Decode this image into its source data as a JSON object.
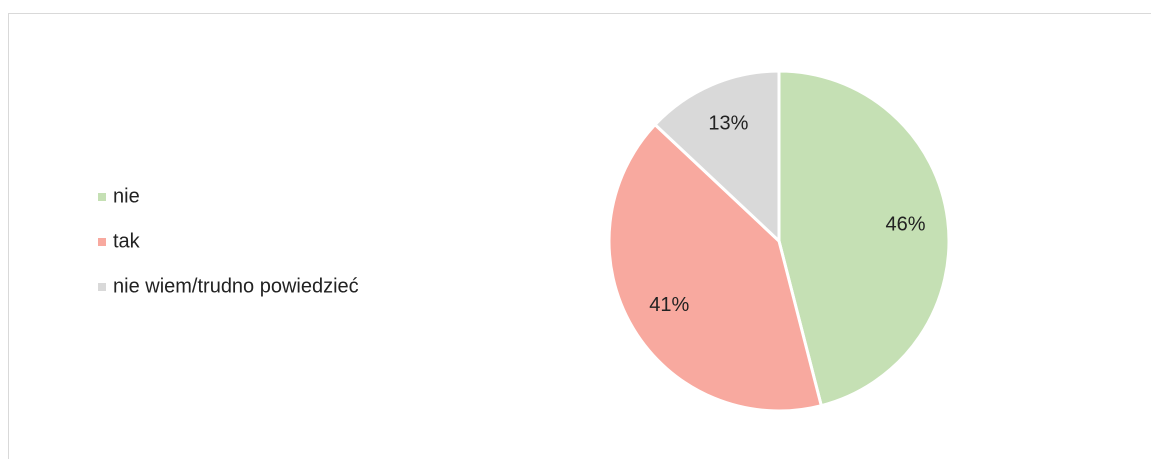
{
  "chart_data": {
    "type": "pie",
    "categories": [
      "nie",
      "tak",
      "nie wiem/trudno powiedzieć"
    ],
    "values": [
      46,
      41,
      13
    ],
    "value_labels": [
      "46%",
      "41%",
      "13%"
    ],
    "colors": [
      "#c5e0b4",
      "#f8a99f",
      "#d9d9d9"
    ],
    "legend": "left"
  }
}
